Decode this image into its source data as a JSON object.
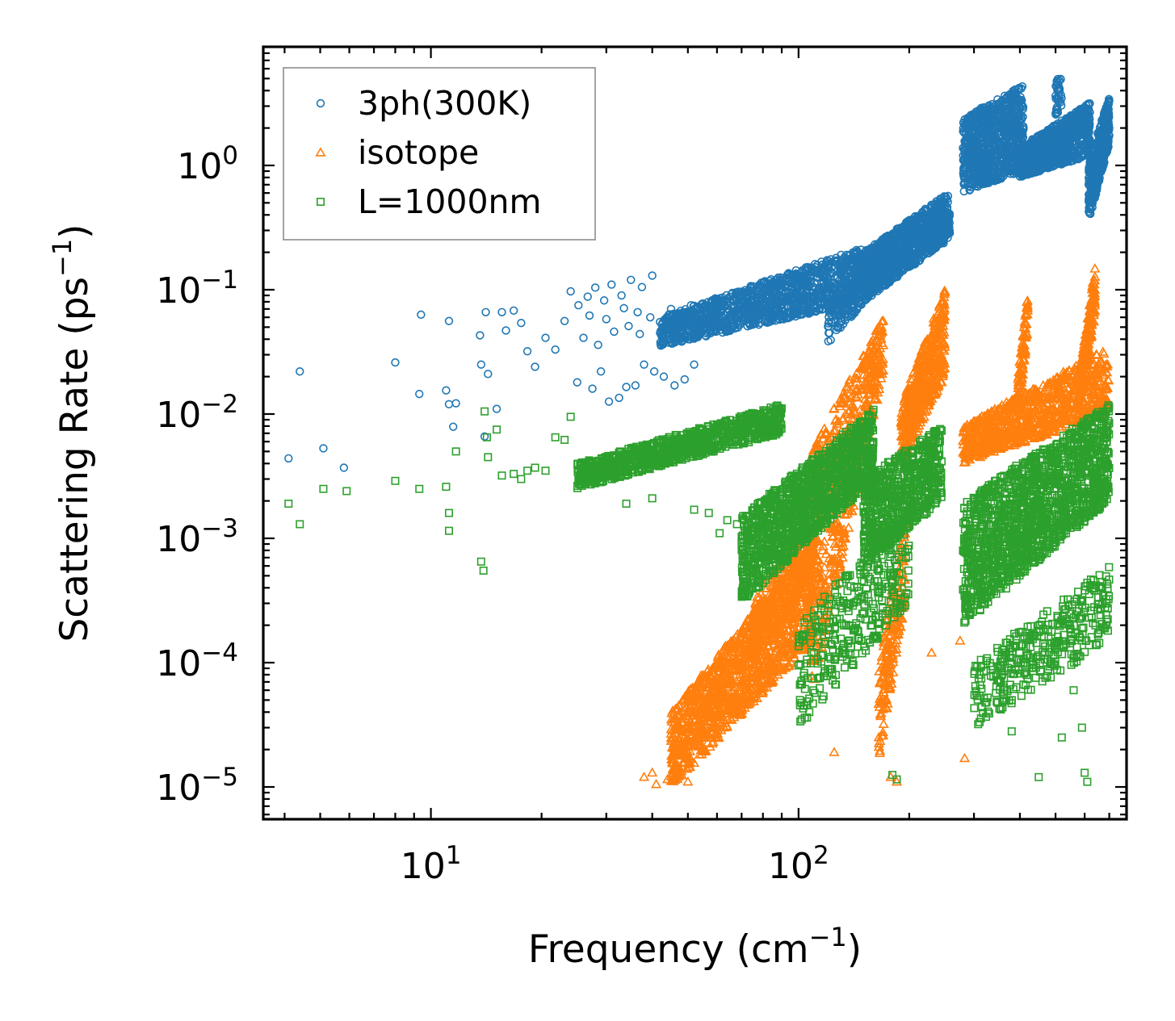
{
  "chart_data": {
    "type": "scatter",
    "title": "",
    "xlabel": "Frequency (cm",
    "xlabel_exp": "−1",
    "xlabel_tail": ")",
    "ylabel": "Scattering Rate (ps",
    "ylabel_exp": "−1",
    "ylabel_tail": ")",
    "xscale": "log",
    "yscale": "log",
    "xlim": [
      3.5,
      780
    ],
    "ylim": [
      5.5e-06,
      9
    ],
    "grid": false,
    "legend_position": "top-left",
    "x_ticks": [
      {
        "value": 10,
        "base": "10",
        "exp": "1"
      },
      {
        "value": 100,
        "base": "10",
        "exp": "2"
      }
    ],
    "y_ticks": [
      {
        "value": 1,
        "base": "10",
        "exp": "0"
      },
      {
        "value": 0.1,
        "base": "10",
        "exp": "−1"
      },
      {
        "value": 0.01,
        "base": "10",
        "exp": "−2"
      },
      {
        "value": 0.001,
        "base": "10",
        "exp": "−3"
      },
      {
        "value": 0.0001,
        "base": "10",
        "exp": "−4"
      },
      {
        "value": 1e-05,
        "base": "10",
        "exp": "−5"
      }
    ],
    "series": [
      {
        "name": "3ph(300K)",
        "marker": "circle",
        "color": "#1f77b4",
        "points": [
          [
            4.1,
            0.0044
          ],
          [
            4.4,
            0.022
          ],
          [
            5.1,
            0.0053
          ],
          [
            5.8,
            0.0037
          ],
          [
            8.0,
            0.026
          ],
          [
            9.3,
            0.0145
          ],
          [
            9.4,
            0.063
          ],
          [
            11.0,
            0.0155
          ],
          [
            11.2,
            0.056
          ],
          [
            11.2,
            0.012
          ],
          [
            11.7,
            0.0122
          ],
          [
            11.5,
            0.0079
          ],
          [
            13.7,
            0.025
          ],
          [
            13.6,
            0.043
          ],
          [
            14.0,
            0.0066
          ],
          [
            14.1,
            0.066
          ],
          [
            14.3,
            0.021
          ],
          [
            15.1,
            0.011
          ],
          [
            15.6,
            0.066
          ],
          [
            16.0,
            0.047
          ],
          [
            16.8,
            0.068
          ],
          [
            17.6,
            0.054
          ],
          [
            18.3,
            0.032
          ],
          [
            19.2,
            0.024
          ],
          [
            20.5,
            0.041
          ],
          [
            21.8,
            0.033
          ],
          [
            23.1,
            0.056
          ],
          [
            24.0,
            0.097
          ],
          [
            25.2,
            0.075
          ],
          [
            26.7,
            0.088
          ],
          [
            28.0,
            0.104
          ],
          [
            29.6,
            0.082
          ],
          [
            31.0,
            0.11
          ],
          [
            33.0,
            0.09
          ],
          [
            35.0,
            0.12
          ],
          [
            37.5,
            0.105
          ],
          [
            40.0,
            0.13
          ],
          [
            25.0,
            0.018
          ],
          [
            27.5,
            0.016
          ],
          [
            29.0,
            0.022
          ],
          [
            30.5,
            0.0126
          ],
          [
            32.5,
            0.0135
          ],
          [
            34.0,
            0.0165
          ],
          [
            36.0,
            0.017
          ],
          [
            38.0,
            0.025
          ],
          [
            40.5,
            0.022
          ],
          [
            43.0,
            0.02
          ],
          [
            46.0,
            0.017
          ],
          [
            49.0,
            0.019
          ],
          [
            52.0,
            0.025
          ],
          [
            26.0,
            0.041
          ],
          [
            28.5,
            0.036
          ],
          [
            31.5,
            0.046
          ],
          [
            34.5,
            0.051
          ],
          [
            37.0,
            0.044
          ],
          [
            39.5,
            0.06
          ],
          [
            42.0,
            0.055
          ],
          [
            45.0,
            0.07
          ],
          [
            48.0,
            0.065
          ],
          [
            51.0,
            0.075
          ],
          [
            27.0,
            0.062
          ],
          [
            30.0,
            0.058
          ],
          [
            33.5,
            0.071
          ],
          [
            36.5,
            0.066
          ]
        ],
        "clouds": [
          {
            "x": [
              42,
              150
            ],
            "y_start": [
              0.035,
              0.06
            ],
            "y_end": [
              0.08,
              0.22
            ],
            "slope": 0.55,
            "n": 1300
          },
          {
            "x": [
              120,
              160
            ],
            "y_start": [
              0.035,
              0.08
            ],
            "y_end": [
              0.1,
              0.2
            ],
            "slope": 0.0,
            "n": 220
          },
          {
            "x": [
              150,
              255
            ],
            "y_start": [
              0.08,
              0.2
            ],
            "y_end": [
              0.25,
              0.6
            ],
            "slope": 0.0,
            "n": 1100
          },
          {
            "x": [
              228,
              258
            ],
            "y_start": [
              0.2,
              0.32
            ],
            "y_end": [
              0.28,
              0.45
            ],
            "slope": 0.0,
            "n": 160
          },
          {
            "x": [
              280,
              410
            ],
            "y_start": [
              0.6,
              2.4
            ],
            "y_end": [
              0.9,
              4.5
            ],
            "slope": 0.0,
            "n": 900
          },
          {
            "x": [
              400,
              620
            ],
            "y_start": [
              0.8,
              1.4
            ],
            "y_end": [
              1.2,
              3.2
            ],
            "slope": 0.0,
            "n": 900
          },
          {
            "x": [
              615,
              700
            ],
            "y_start": [
              0.35,
              1.0
            ],
            "y_end": [
              1.5,
              3.8
            ],
            "slope": 0.0,
            "n": 500
          },
          {
            "x": [
              500,
              520
            ],
            "y_start": [
              2.5,
              5.0
            ],
            "y_end": [
              3.0,
              5.2
            ],
            "slope": 0.0,
            "n": 40
          }
        ]
      },
      {
        "name": "isotope",
        "marker": "triangle",
        "color": "#ff7f0e",
        "points": [
          [
            38,
            1.2e-05
          ],
          [
            40,
            1.3e-05
          ],
          [
            41,
            1.05e-05
          ],
          [
            44,
            1.15e-05
          ],
          [
            47,
            1.3e-05
          ],
          [
            50,
            1.1e-05
          ],
          [
            283,
            1.7e-05
          ],
          [
            178,
            1.2e-05
          ],
          [
            185,
            1.1e-05
          ],
          [
            275,
            0.00015
          ],
          [
            230,
            0.00012
          ],
          [
            125,
            1.9e-05
          ]
        ],
        "clouds": [
          {
            "x": [
              45,
              110
            ],
            "y_start": [
              1e-05,
              4e-05
            ],
            "y_end": [
              0.00015,
              0.001
            ],
            "slope": 0.0,
            "n": 1300
          },
          {
            "x": [
              75,
              110
            ],
            "y_start": [
              0.0001,
              0.0003
            ],
            "y_end": [
              0.0005,
              0.002
            ],
            "slope": 0.0,
            "n": 300
          },
          {
            "x": [
              108,
              170
            ],
            "y_start": [
              5e-05,
              0.005
            ],
            "y_end": [
              0.02,
              0.06
            ],
            "slope": 0.0,
            "n": 600
          },
          {
            "x": [
              165,
              195
            ],
            "y_start": [
              1.5e-05,
              0.0001
            ],
            "y_end": [
              0.0003,
              0.0015
            ],
            "slope": 0.0,
            "n": 200
          },
          {
            "x": [
              190,
              250
            ],
            "y_start": [
              0.004,
              0.012
            ],
            "y_end": [
              0.02,
              0.1
            ],
            "slope": 0.0,
            "n": 500
          },
          {
            "x": [
              280,
              700
            ],
            "y_start": [
              0.004,
              0.008
            ],
            "y_end": [
              0.01,
              0.035
            ],
            "slope": 0.0,
            "n": 900
          },
          {
            "x": [
              580,
              640
            ],
            "y_start": [
              0.01,
              0.02
            ],
            "y_end": [
              0.06,
              0.15
            ],
            "slope": 0.0,
            "n": 200
          },
          {
            "x": [
              395,
              420
            ],
            "y_start": [
              0.008,
              0.02
            ],
            "y_end": [
              0.05,
              0.09
            ],
            "slope": 0.0,
            "n": 100
          }
        ]
      },
      {
        "name": "L=1000nm",
        "marker": "square",
        "color": "#2ca02c",
        "points": [
          [
            4.1,
            0.0019
          ],
          [
            4.4,
            0.0013
          ],
          [
            5.1,
            0.0025
          ],
          [
            5.9,
            0.0024
          ],
          [
            8.0,
            0.0029
          ],
          [
            9.3,
            0.0025
          ],
          [
            11.0,
            0.0026
          ],
          [
            11.2,
            0.0016
          ],
          [
            11.2,
            0.00115
          ],
          [
            11.7,
            0.005
          ],
          [
            13.7,
            0.00065
          ],
          [
            13.9,
            0.00055
          ],
          [
            14.0,
            0.0105
          ],
          [
            14.2,
            0.0065
          ],
          [
            14.3,
            0.0045
          ],
          [
            15.1,
            0.0075
          ],
          [
            15.6,
            0.0032
          ],
          [
            16.8,
            0.0033
          ],
          [
            17.6,
            0.003
          ],
          [
            18.3,
            0.0035
          ],
          [
            19.2,
            0.0037
          ],
          [
            20.5,
            0.0035
          ],
          [
            21.8,
            0.0065
          ],
          [
            23.1,
            0.0062
          ],
          [
            24.0,
            0.0095
          ],
          [
            34.0,
            0.0019
          ],
          [
            40.0,
            0.0021
          ],
          [
            52.0,
            0.0017
          ],
          [
            57.0,
            0.0016
          ],
          [
            61.0,
            0.0011
          ],
          [
            64.0,
            0.0014
          ],
          [
            68.0,
            0.0013
          ],
          [
            75.0,
            0.00055
          ],
          [
            180,
            1.25e-05
          ],
          [
            185,
            1.15e-05
          ],
          [
            450,
            1.2e-05
          ],
          [
            600,
            1.3e-05
          ],
          [
            610,
            1.1e-05
          ],
          [
            520,
            2.5e-05
          ],
          [
            330,
            3.9e-05
          ],
          [
            355,
            4.2e-05
          ],
          [
            380,
            2.8e-05
          ],
          [
            560,
            6e-05
          ],
          [
            590,
            3e-05
          ]
        ],
        "clouds": [
          {
            "x": [
              25,
              90
            ],
            "y_start": [
              0.0025,
              0.004
            ],
            "y_end": [
              0.007,
              0.012
            ],
            "slope": 0.0,
            "n": 900
          },
          {
            "x": [
              70,
              160
            ],
            "y_start": [
              0.0003,
              0.0015
            ],
            "y_end": [
              0.003,
              0.011
            ],
            "slope": 0.0,
            "n": 1300
          },
          {
            "x": [
              100,
              200
            ],
            "y_start": [
              3e-05,
              0.0002
            ],
            "y_end": [
              0.0003,
              0.002
            ],
            "slope": 0.0,
            "n": 350
          },
          {
            "x": [
              150,
              245
            ],
            "y_start": [
              0.0006,
              0.003
            ],
            "y_end": [
              0.002,
              0.008
            ],
            "slope": 0.0,
            "n": 700
          },
          {
            "x": [
              280,
              700
            ],
            "y_start": [
              0.0002,
              0.002
            ],
            "y_end": [
              0.002,
              0.012
            ],
            "slope": 0.0,
            "n": 1600
          },
          {
            "x": [
              300,
              700
            ],
            "y_start": [
              3e-05,
              0.0001
            ],
            "y_end": [
              0.00015,
              0.0006
            ],
            "slope": 0.0,
            "n": 350
          }
        ]
      }
    ]
  }
}
